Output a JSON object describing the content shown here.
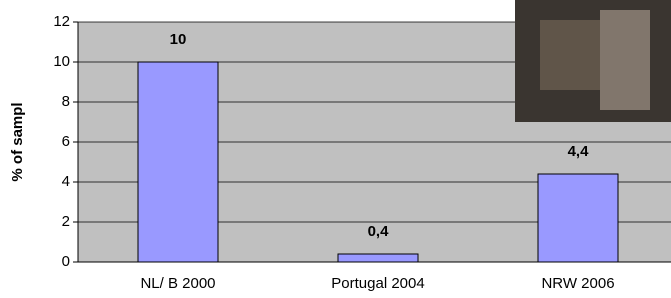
{
  "chart_data": {
    "type": "bar",
    "y_label": "% of sampl",
    "categories": [
      "NL/ B 2000",
      "Portugal 2004",
      "NRW 2006"
    ],
    "values": [
      10,
      0.4,
      4.4
    ],
    "value_labels": [
      "10",
      "0,4",
      "4,4"
    ],
    "color": "#9999ff",
    "ylim": [
      0,
      12
    ],
    "yticks": [
      0,
      2,
      4,
      6,
      8,
      10,
      12
    ],
    "grid": true
  }
}
